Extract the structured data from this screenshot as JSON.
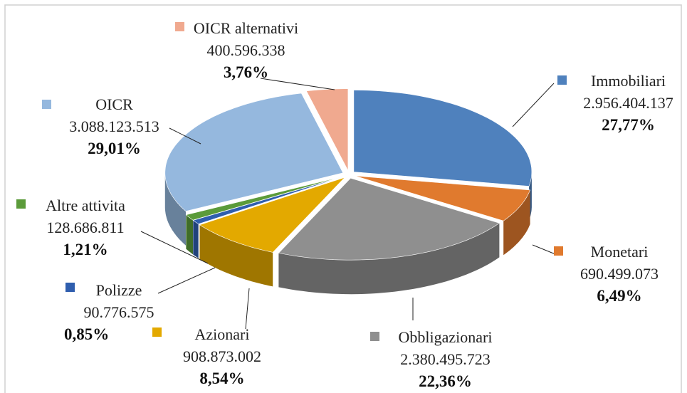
{
  "chart_data": {
    "type": "pie",
    "categories": [
      "Immobiliari",
      "Monetari",
      "Obbligazionari",
      "Azionari",
      "Polizze",
      "Altre attivita",
      "OICR",
      "OICR alternativi"
    ],
    "values": [
      27.77,
      6.49,
      22.36,
      8.54,
      0.85,
      1.21,
      29.01,
      3.76
    ],
    "value_labels": [
      "27,77%",
      "6,49%",
      "22,36%",
      "8,54%",
      "0,85%",
      "1,21%",
      "29,01%",
      "3,76%"
    ],
    "amounts": [
      2956404137,
      690499073,
      2380495723,
      908873002,
      90776575,
      128686811,
      3088123513,
      400596338
    ],
    "amount_labels": [
      "2.956.404.137",
      "690.499.073",
      "2.380.495.723",
      "908.873.002",
      "90.776.575",
      "128.686.811",
      "3.088.123.513",
      "400.596.338"
    ],
    "colors": [
      "#4f81bd",
      "#e07a2e",
      "#8f8f8f",
      "#e3a900",
      "#2f5eae",
      "#5b9b3a",
      "#95b8de",
      "#f0a98f"
    ]
  }
}
